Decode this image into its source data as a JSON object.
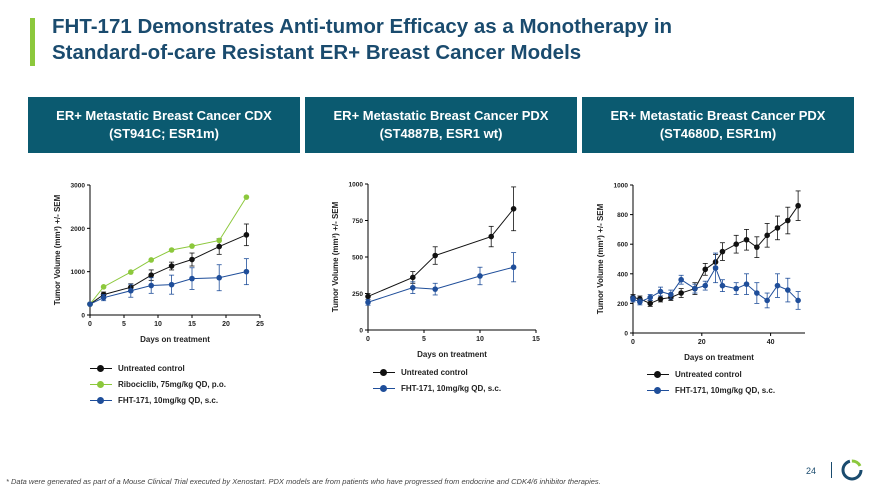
{
  "title": {
    "line1": "FHT-171 Demonstrates Anti-tumor Efficacy as a Monotherapy in",
    "line2": "Standard-of-care Resistant ER+ Breast Cancer Models"
  },
  "panels": [
    {
      "heading1": "ER+ Metastatic Breast Cancer CDX",
      "heading2": "(ST941C; ESR1m)"
    },
    {
      "heading1": "ER+ Metastatic Breast Cancer PDX",
      "heading2": "(ST4887B, ESR1 wt)"
    },
    {
      "heading1": "ER+ Metastatic Breast Cancer PDX",
      "heading2": "(ST4680D, ESR1m)"
    }
  ],
  "colors": {
    "control": "#111111",
    "ribociclib": "#8cc83c",
    "fht": "#1f4e9a",
    "header": "#0b5a70",
    "title": "#1a4b6e"
  },
  "chart_data": [
    {
      "type": "line",
      "xlabel": "Days on treatment",
      "ylabel": "Tumor Volume (mm³) +/- SEM",
      "xlim": [
        0,
        25
      ],
      "ylim": [
        0,
        3000
      ],
      "xticks": [
        0,
        5,
        10,
        15,
        20,
        25
      ],
      "yticks": [
        0,
        1000,
        2000,
        3000
      ],
      "series": [
        {
          "name": "Untreated control",
          "key": "control",
          "x": [
            0,
            2,
            6,
            9,
            12,
            15,
            19,
            23
          ],
          "y": [
            250,
            470,
            640,
            920,
            1130,
            1280,
            1580,
            1850
          ],
          "err": [
            30,
            60,
            80,
            120,
            90,
            150,
            180,
            250
          ]
        },
        {
          "name": "Ribociclib, 75mg/kg QD, p.o.",
          "key": "ribociclib",
          "x": [
            0,
            2,
            6,
            9,
            12,
            15,
            19,
            23
          ],
          "y": [
            250,
            650,
            990,
            1270,
            1500,
            1590,
            1720,
            2720
          ],
          "err": [
            0,
            0,
            0,
            0,
            0,
            0,
            0,
            0
          ]
        },
        {
          "name": "FHT-171, 10mg/kg QD, s.c.",
          "key": "fht",
          "x": [
            0,
            2,
            6,
            9,
            12,
            15,
            19,
            23
          ],
          "y": [
            250,
            400,
            560,
            680,
            700,
            840,
            860,
            1000
          ],
          "err": [
            30,
            70,
            150,
            180,
            220,
            250,
            300,
            300
          ]
        }
      ]
    },
    {
      "type": "line",
      "xlabel": "Days on treatment",
      "ylabel": "Tumor Volume (mm³) +/- SEM",
      "xlim": [
        0,
        15
      ],
      "ylim": [
        0,
        1000
      ],
      "xticks": [
        0,
        5,
        10,
        15
      ],
      "yticks": [
        0,
        250,
        500,
        750,
        1000
      ],
      "series": [
        {
          "name": "Untreated control",
          "key": "control",
          "x": [
            0,
            4,
            6,
            11,
            13
          ],
          "y": [
            230,
            360,
            510,
            640,
            830
          ],
          "err": [
            20,
            40,
            60,
            70,
            150
          ]
        },
        {
          "name": "FHT-171, 10mg/kg QD, s.c.",
          "key": "fht",
          "x": [
            0,
            4,
            6,
            10,
            13
          ],
          "y": [
            190,
            290,
            280,
            370,
            430
          ],
          "err": [
            20,
            40,
            40,
            60,
            100
          ]
        }
      ]
    },
    {
      "type": "line",
      "xlabel": "Days on treatment",
      "ylabel": "Tumor Volume (mm³) +/- SEM",
      "xlim": [
        0,
        50
      ],
      "ylim": [
        0,
        1000
      ],
      "xticks": [
        0,
        20,
        40
      ],
      "yticks": [
        0,
        200,
        400,
        600,
        800,
        1000
      ],
      "series": [
        {
          "name": "Untreated control",
          "key": "control",
          "x": [
            0,
            2,
            5,
            8,
            11,
            14,
            18,
            21,
            24,
            26,
            30,
            33,
            36,
            39,
            42,
            45,
            48
          ],
          "y": [
            240,
            230,
            200,
            230,
            240,
            270,
            300,
            430,
            480,
            550,
            600,
            630,
            580,
            660,
            710,
            760,
            860
          ],
          "err": [
            20,
            20,
            20,
            20,
            20,
            30,
            40,
            40,
            50,
            60,
            60,
            70,
            70,
            80,
            80,
            90,
            100
          ]
        },
        {
          "name": "FHT-171, 10mg/kg QD, s.c.",
          "key": "fht",
          "x": [
            0,
            2,
            5,
            8,
            11,
            14,
            18,
            21,
            24,
            26,
            30,
            33,
            36,
            39,
            42,
            45,
            48
          ],
          "y": [
            230,
            210,
            240,
            280,
            260,
            360,
            300,
            320,
            440,
            320,
            300,
            330,
            270,
            220,
            320,
            290,
            220
          ],
          "err": [
            20,
            20,
            20,
            30,
            30,
            30,
            30,
            30,
            100,
            40,
            40,
            70,
            70,
            50,
            80,
            80,
            60
          ]
        }
      ]
    }
  ],
  "footnote": "* Data were generated as part of a Mouse Clinical Trial executed by Xenostart. PDX models are from patients who have progressed from endocrine and CDK4/6 inhibitor therapies.",
  "page_number": "24"
}
